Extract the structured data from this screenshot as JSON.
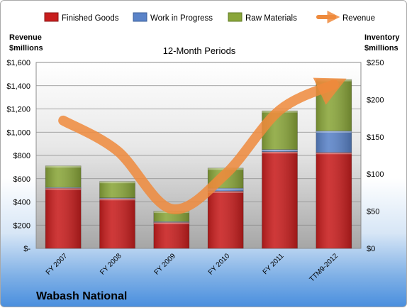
{
  "chart_data": {
    "type": "bar",
    "stacked": true,
    "subtitle": "12-Month Periods",
    "brand": "Wabash National",
    "categories": [
      "FY 2007",
      "FY 2008",
      "FY 2009",
      "FY 2010",
      "FY 2011",
      "TTM9-2012"
    ],
    "left_axis": {
      "label_line1": "Revenue",
      "label_line2": "$millions",
      "ylim": [
        0,
        1600
      ],
      "ticks": [
        {
          "value": 0,
          "label": "$-"
        },
        {
          "value": 200,
          "label": "$200"
        },
        {
          "value": 400,
          "label": "$400"
        },
        {
          "value": 600,
          "label": "$600"
        },
        {
          "value": 800,
          "label": "$800"
        },
        {
          "value": 1000,
          "label": "$1,000"
        },
        {
          "value": 1200,
          "label": "$1,200"
        },
        {
          "value": 1400,
          "label": "$1,400"
        },
        {
          "value": 1600,
          "label": "$1,600"
        }
      ]
    },
    "right_axis": {
      "label_line1": "Inventory",
      "label_line2": "$millions",
      "ylim": [
        0,
        250
      ],
      "ticks": [
        {
          "value": 0,
          "label": "$0"
        },
        {
          "value": 50,
          "label": "$50"
        },
        {
          "value": 100,
          "label": "$100"
        },
        {
          "value": 150,
          "label": "$150"
        },
        {
          "value": 200,
          "label": "$200"
        },
        {
          "value": 250,
          "label": "$250"
        }
      ]
    },
    "series": [
      {
        "name": "Finished Goods",
        "axis": "right",
        "color": "#c81e1e",
        "values": [
          81,
          67,
          35,
          77,
          130,
          129
        ]
      },
      {
        "name": "Work in Progress",
        "axis": "right",
        "color": "#5a83c8",
        "values": [
          1,
          1,
          1,
          4,
          3,
          29
        ]
      },
      {
        "name": "Raw Materials",
        "axis": "right",
        "color": "#8aa63a",
        "values": [
          29,
          22,
          14,
          27,
          52,
          69
        ]
      },
      {
        "name": "Revenue",
        "axis": "left",
        "type": "line",
        "color": "#ee8a3c",
        "values": [
          1100,
          840,
          340,
          640,
          1190,
          1410
        ]
      }
    ],
    "grid": true,
    "legend": "top"
  }
}
